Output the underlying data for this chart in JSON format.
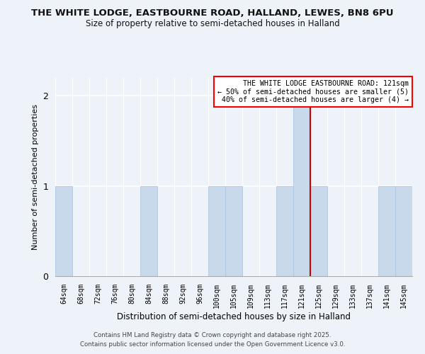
{
  "title": "THE WHITE LODGE, EASTBOURNE ROAD, HALLAND, LEWES, BN8 6PU",
  "subtitle": "Size of property relative to semi-detached houses in Halland",
  "xlabel": "Distribution of semi-detached houses by size in Halland",
  "ylabel": "Number of semi-detached properties",
  "bin_labels": [
    "64sqm",
    "68sqm",
    "72sqm",
    "76sqm",
    "80sqm",
    "84sqm",
    "88sqm",
    "92sqm",
    "96sqm",
    "100sqm",
    "105sqm",
    "109sqm",
    "113sqm",
    "117sqm",
    "121sqm",
    "125sqm",
    "129sqm",
    "133sqm",
    "137sqm",
    "141sqm",
    "145sqm"
  ],
  "bar_heights": [
    1,
    0,
    0,
    0,
    0,
    1,
    0,
    0,
    0,
    1,
    1,
    0,
    0,
    1,
    2,
    1,
    0,
    0,
    0,
    1,
    1
  ],
  "bar_color_normal": "#c8d9ec",
  "bar_edge_color": "#aec6df",
  "highlight_bar_index": 14,
  "annotation_title": "THE WHITE LODGE EASTBOURNE ROAD: 121sqm",
  "annotation_line1": "← 50% of semi-detached houses are smaller (5)",
  "annotation_line2": "40% of semi-detached houses are larger (4) →",
  "footnote1": "Contains HM Land Registry data © Crown copyright and database right 2025.",
  "footnote2": "Contains public sector information licensed under the Open Government Licence v3.0.",
  "ylim": [
    0,
    2.2
  ],
  "yticks": [
    0,
    1,
    2
  ],
  "background_color": "#eef2f9",
  "grid_color": "#ffffff",
  "red_line_color": "#cc0000"
}
